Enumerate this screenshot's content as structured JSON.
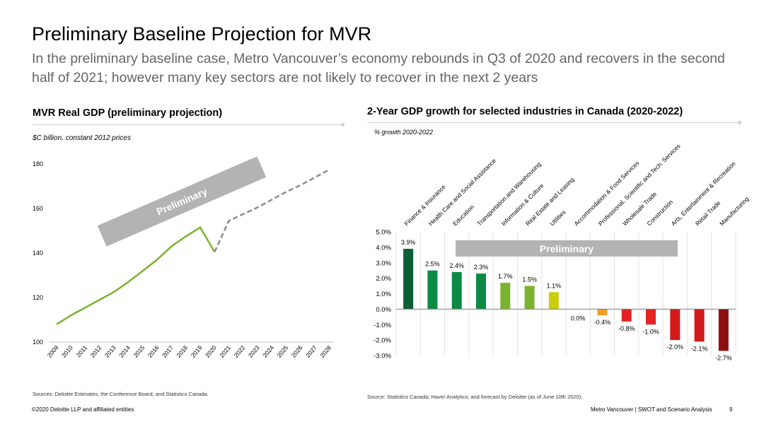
{
  "slide": {
    "title": "Preliminary Baseline Projection for MVR",
    "subtitle": "In the preliminary baseline case, Metro Vancouver’s economy rebounds in Q3 of 2020 and recovers in the second half of 2021; however many key sectors are not likely to recover in the next 2 years",
    "footer_left": "©2020 Deloitte LLP and affiliated entities",
    "footer_right": "Metro Vancouver | SWOT and Scenario Analysis",
    "page_number": "9"
  },
  "left_panel": {
    "title": "MVR Real GDP (preliminary projection)",
    "unit_note": "$C billion, constant 2012 prices",
    "source": "Sources: Deloitte Estimates, the Conference Board, and Statistics Canada."
  },
  "right_panel": {
    "title": "2-Year GDP growth for selected industries in Canada (2020-2022)",
    "unit_note": "% growth 2020-2022",
    "source": "Source: Statistics Canada; Haver Analytics; and forecast by Deloitte (as of June 10th 2020)."
  },
  "chart_data": [
    {
      "type": "line",
      "x": [
        "2009",
        "2010",
        "2011",
        "2012",
        "2013",
        "2014",
        "2015",
        "2016",
        "2017",
        "2018",
        "2019",
        "2020",
        "2021",
        "2022",
        "2023",
        "2024",
        "2025",
        "2026",
        "2027",
        "2028"
      ],
      "series": [
        {
          "values": [
            108,
            112,
            115.5,
            119,
            122.5,
            127,
            132,
            137,
            143,
            147.5,
            151.5,
            140.5,
            null,
            null,
            null,
            null,
            null,
            null,
            null,
            null
          ],
          "color": "#7ab32e",
          "style": "solid"
        },
        {
          "values": [
            null,
            null,
            null,
            null,
            null,
            null,
            null,
            null,
            null,
            null,
            null,
            140.5,
            154.5,
            157.5,
            160.5,
            164,
            167.5,
            170.5,
            174,
            177.5
          ],
          "color": "#8c8c8c",
          "style": "dashed"
        }
      ],
      "ylim": [
        100,
        180
      ],
      "yticks": [
        "100",
        "120",
        "140",
        "160",
        "180"
      ],
      "annotation": "Preliminary",
      "grid": false
    },
    {
      "type": "bar",
      "categories": [
        "Finance & Insurance",
        "Health Care and Social Assistance",
        "Education",
        "Transportation and Warehousing",
        "Information & Culture",
        "Real Estate and Leasing",
        "Utilities",
        "Accommodation & Food Services",
        "Professional, Scientific and Tech. Services",
        "Wholesale Trade",
        "Construction",
        "Arts, Entertainment & Recreation",
        "Retail Trade",
        "Manufacturing"
      ],
      "values": [
        3.9,
        2.5,
        2.4,
        2.3,
        1.7,
        1.5,
        1.1,
        0.0,
        -0.4,
        -0.8,
        -1.0,
        -2.0,
        -2.1,
        -2.7
      ],
      "labels": [
        "3.9%",
        "2.5%",
        "2.4%",
        "2.3%",
        "1.7%",
        "1.5%",
        "1.1%",
        "0.0%",
        "-0.4%",
        "-0.8%",
        "-1.0%",
        "-2.0%",
        "-2.1%",
        "-2.7%"
      ],
      "colors": [
        "#0b5e35",
        "#0c8a45",
        "#0c8a45",
        "#0c8a45",
        "#7ab32e",
        "#7ab32e",
        "#c9cf0a",
        "#bbbbbb",
        "#f0a020",
        "#e52323",
        "#e52323",
        "#d41a1a",
        "#d41a1a",
        "#8c0f0f"
      ],
      "ylim": [
        -3.0,
        5.0
      ],
      "yticks": [
        "5.0%",
        "4.0%",
        "3.0%",
        "2.0%",
        "1.0%",
        "0.0%",
        "-1.0%",
        "-2.0%",
        "-3.0%"
      ],
      "annotation": "Preliminary",
      "grid": "vertical"
    }
  ]
}
